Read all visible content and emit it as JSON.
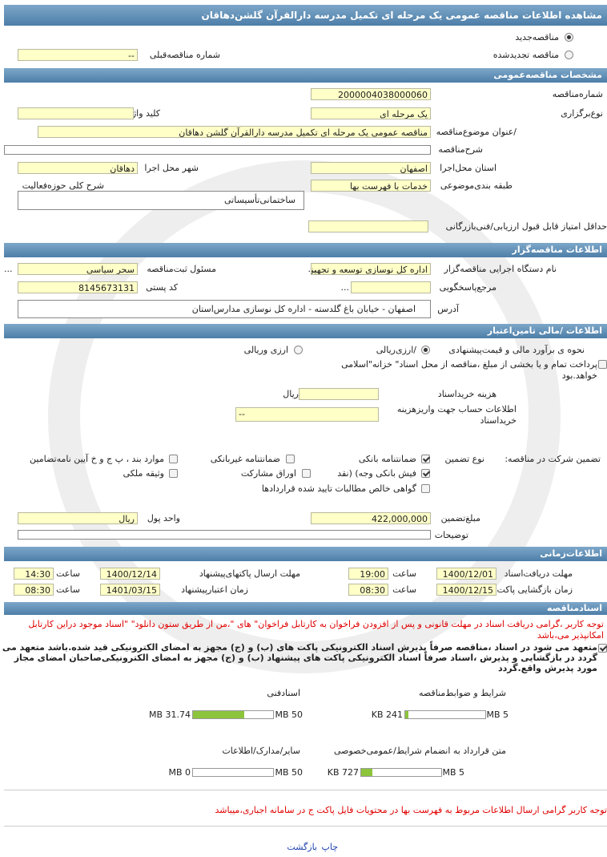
{
  "header": {
    "title": "مشاهده اطلاعات مناقصه عمومی یک مرحله ای تکمیل مدرسه دارالقرآن گلشن‌دهاقان"
  },
  "tender_type": {
    "new": "مناقصه‌جدید",
    "renewed": "مناقصه تجدیدشده",
    "previous_label": "شماره مناقصه‌قبلی",
    "previous_value": "--"
  },
  "general": {
    "title": "مشخصات مناقصه‌عمومی",
    "number_label": "شماره‌مناقصه",
    "number": "2000004038000060",
    "type_label": "نوع‌برگزاری",
    "type": "یک مرحله ای",
    "keyword_label": "کلید واژه",
    "subject_label": "/عنوان موضوع‌مناقصه",
    "subject": "مناقصه عمومی یک مرحله ای تکمیل مدرسه دارالقرآن گلشن دهاقان",
    "description_label": "شرح‌مناقصه",
    "province_label": "استان محل‌اجرا",
    "province": "اصفهان",
    "city_label": "شهر محل اجرا",
    "city": "دهاقان",
    "category_label": "طبقه بندی‌موضوعی",
    "category": "خدمات با فهرست بها",
    "activity_label": "شرح کلی حوزه‌فعالیت",
    "activity": "ساختمانی‌تأسیساتی",
    "min_score_label": "حداقل امتیاز قابل قبول ارزیابی/فنی‌بازرگانی"
  },
  "organizer": {
    "title": "اطلاعات مناقصه‌گزار",
    "agency_label": "نام دستگاه اجرایی مناقصه‌گزار",
    "agency": "اداره کل نوسازی  توسعه و تجهیز مدارس",
    "agency_more": "...",
    "registrar_label": "مسئول ثبت‌مناقصه",
    "registrar": "سحر سیاسی",
    "registrar_more": "...",
    "reference_label": "مرجع‌پاسخگویی",
    "reference_more": "...",
    "postal_label": "کد پستی",
    "postal_code": "8145673131",
    "address_label": "آدرس",
    "address": "اصفهان - خیابان باغ گلدسته - اداره کل نوسازی مدارس‌استان"
  },
  "finance": {
    "title": "اطلاعات /مالی تامین‌اعتبار",
    "estimate_label": "نحوه ی برآورد مالی و قیمت‌پیشنهادی",
    "estimate_option_1": "/ارزی‌ریالی",
    "estimate_option_2": "ارزی وریالی",
    "treasury_note": "پرداخت تمام و یا بخشی از مبلغ ،مناقصه از محل اسناد\" خزانه\"اسلامی خواهد.بود",
    "fee_label": "هزینه خریداسناد",
    "fee_unit": "ریال",
    "account_label": "اطلاعات حساب جهت واریزهزینه خریداسناد",
    "account_value": "--",
    "guarantee_label": "تضمین شرکت در مناقصه:",
    "guarantee_type_label": "نوع   تضمین",
    "options": [
      "ضمانتنامه  بانکی",
      "ضمانتنامه  غیربانکی",
      "موارد  بند ، پ ج و خ آیین نامه‌تضامین",
      "فیش  بانکی وجه) (نقد",
      "اوراق  مشارکت",
      "وثیقه ملکی",
      "گواهی  خالص مطالبات تایید شده قراردادها"
    ],
    "amount_label": "مبلغ‌تضمین",
    "amount": "422,000,000",
    "currency_label": "واحد پول",
    "currency": "ریال",
    "notes_label": "توضیحات"
  },
  "timing": {
    "title": "اطلاعات‌زمانی",
    "receive_label": "مهلت دریافت‌اسناد",
    "receive_date": "1400/12/01",
    "receive_time_label": "ساعت",
    "receive_time": "19:00",
    "submit_label": "مهلت     ارسال پاکتهای‌پیشنهاد",
    "submit_date": "1400/12/14",
    "submit_time_label": "ساعت",
    "submit_time": "14:30",
    "opening_label": "زمان بازگشایی پاکت‌ها",
    "opening_date": "1400/12/15",
    "opening_time_label": "ساعت",
    "opening_time": "08:30",
    "validity_label": "زمان     اعتبارپیشنهاد",
    "validity_date": "1401/03/15",
    "validity_time_label": "ساعت",
    "validity_time": "08:30"
  },
  "documents": {
    "title": "اسنادمناقصه",
    "note": "توجه کاربر ،گرامی دریافت اسناد در مهلت قانونی و پس از افزودن فراخوان به کارتابل فراخوان\" های \"،من از طریق ستون دانلود\" \"اسناد موجود دراین کارتابل امکانپذیر می،باشد",
    "commitment": "متعهد می شود در اسناد ،مناقصه صرفاً پذیرش اسناد الکترونیکی پاکت های (ب) و (ج) مجهز به امضای الکترونیکی قید شده.باشد متعهد می گردد در بازگشایی و پذیرش ،اسناد صرفاً اسناد الکترونیکی پاکت های پیشنهاد (ب) و (ج) مجهز به امضای الکترونیکی‌صاحبان امضای مجاز مورد پذیرش واقع.گردد",
    "files": [
      {
        "name": "شرایط و ضوابط‌مناقصه",
        "used": "241 KB",
        "capacity": "5 MB"
      },
      {
        "name": "اسنادفنی",
        "used": "31.74 MB",
        "capacity": "50 MB"
      },
      {
        "name": "متن قرارداد به انضمام شرایط/عمومی‌خصوصی",
        "used": "727 KB",
        "capacity": "5 MB"
      },
      {
        "name": "سایر/مدارک/اطلاعات",
        "used": "0 MB",
        "capacity": "50 MB"
      }
    ],
    "footer_note": "توجه کاربر گرامی ارسال اطلاعات مربوط به فهرست بها در محتویات فایل پاکت ج در سامانه اجباری،میباشد"
  },
  "actions": {
    "print": "چاپ",
    "back": "بازگشت"
  }
}
